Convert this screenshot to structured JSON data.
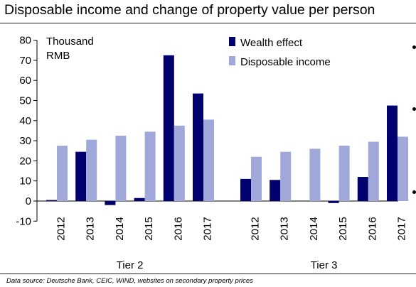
{
  "title": "Disposable income and change of property value per person",
  "source": "Data source: Deutsche Bank, CEIC, WIND, websites on secondary property prices",
  "colors": {
    "wealth": "#00006e",
    "income": "#9fa8d8"
  },
  "chart_data": {
    "type": "bar",
    "unit_label": [
      "Thousand",
      "RMB"
    ],
    "ylim": [
      -10,
      80
    ],
    "yticks": [
      -10,
      0,
      10,
      20,
      30,
      40,
      50,
      60,
      70,
      80
    ],
    "legend": {
      "placement": "top-right",
      "entries": [
        "Wealth effect",
        "Disposable income"
      ]
    },
    "groups": [
      {
        "name": "Tier 2",
        "categories": [
          "2012",
          "2013",
          "2014",
          "2015",
          "2016",
          "2017"
        ],
        "series": [
          {
            "name": "Wealth effect",
            "values": [
              0.5,
              24.5,
              -2,
              1.5,
              72.5,
              53.5
            ]
          },
          {
            "name": "Disposable income",
            "values": [
              27.5,
              30.5,
              32.5,
              34.5,
              37.5,
              40.5
            ]
          }
        ]
      },
      {
        "name": "Tier 3",
        "categories": [
          "2012",
          "2013",
          "2014",
          "2015",
          "2016",
          "2017"
        ],
        "series": [
          {
            "name": "Wealth effect",
            "values": [
              11,
              10.5,
              0,
              -1,
              12,
              47.5
            ]
          },
          {
            "name": "Disposable income",
            "values": [
              22,
              24.5,
              26,
              27.5,
              29.5,
              32
            ]
          }
        ]
      }
    ]
  }
}
